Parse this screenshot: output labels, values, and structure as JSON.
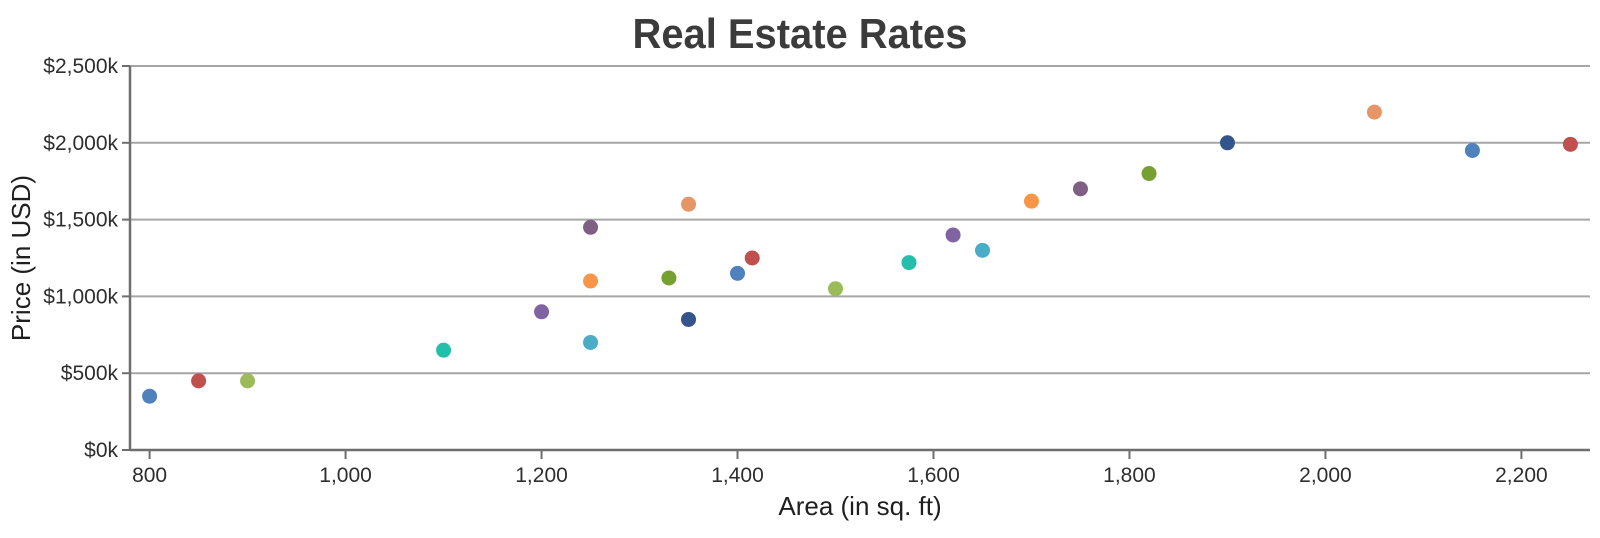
{
  "chart_data": {
    "type": "scatter",
    "title": "Real Estate Rates",
    "xlabel": "Area (in sq. ft)",
    "ylabel": "Price (in USD)",
    "y_unit": "thousands of USD (k)",
    "xlim": [
      780,
      2270
    ],
    "ylim": [
      0,
      2500
    ],
    "x_ticks": [
      800,
      1000,
      1200,
      1400,
      1600,
      1800,
      2000,
      2200
    ],
    "x_tick_labels": [
      "800",
      "1,000",
      "1,200",
      "1,400",
      "1,600",
      "1,800",
      "2,000",
      "2,200"
    ],
    "y_ticks": [
      0,
      500,
      1000,
      1500,
      2000,
      2500
    ],
    "y_tick_labels": [
      "$0k",
      "$500k",
      "$1,000k",
      "$1,500k",
      "$2,000k",
      "$2,500k"
    ],
    "grid": "horizontal-only",
    "legend": "none",
    "points": [
      {
        "x": 800,
        "y": 350,
        "color": "#4F81BC"
      },
      {
        "x": 850,
        "y": 450,
        "color": "#C0504E"
      },
      {
        "x": 900,
        "y": 450,
        "color": "#9BBB58"
      },
      {
        "x": 1100,
        "y": 650,
        "color": "#23BFAA"
      },
      {
        "x": 1200,
        "y": 900,
        "color": "#8064A1"
      },
      {
        "x": 1250,
        "y": 700,
        "color": "#4AACC5"
      },
      {
        "x": 1250,
        "y": 1100,
        "color": "#F79647"
      },
      {
        "x": 1250,
        "y": 1450,
        "color": "#7F6084"
      },
      {
        "x": 1330,
        "y": 1120,
        "color": "#77A033"
      },
      {
        "x": 1350,
        "y": 850,
        "color": "#33558B"
      },
      {
        "x": 1350,
        "y": 1600,
        "color": "#E59566"
      },
      {
        "x": 1400,
        "y": 1150,
        "color": "#4F81BC"
      },
      {
        "x": 1415,
        "y": 1250,
        "color": "#C0504E"
      },
      {
        "x": 1500,
        "y": 1050,
        "color": "#9BBB58"
      },
      {
        "x": 1575,
        "y": 1220,
        "color": "#23BFAA"
      },
      {
        "x": 1620,
        "y": 1400,
        "color": "#8064A1"
      },
      {
        "x": 1650,
        "y": 1300,
        "color": "#4AACC5"
      },
      {
        "x": 1700,
        "y": 1620,
        "color": "#F79647"
      },
      {
        "x": 1750,
        "y": 1700,
        "color": "#7F6084"
      },
      {
        "x": 1820,
        "y": 1800,
        "color": "#77A033"
      },
      {
        "x": 1900,
        "y": 2000,
        "color": "#33558B"
      },
      {
        "x": 2050,
        "y": 2200,
        "color": "#E59566"
      },
      {
        "x": 2150,
        "y": 1950,
        "color": "#4F81BC"
      },
      {
        "x": 2250,
        "y": 1990,
        "color": "#C0504E"
      }
    ]
  },
  "style": {
    "background": "#FFFFFF",
    "title_color": "#3B3B3B",
    "grid_color": "#A6A6A6",
    "axis_color": "#6E6E6E",
    "tick_color": "#6E6E6E",
    "text_color": "#2E2E2E",
    "palette": [
      "#4F81BC",
      "#C0504E",
      "#9BBB58",
      "#23BFAA",
      "#8064A1",
      "#4AACC5",
      "#F79647",
      "#7F6084",
      "#77A033",
      "#33558B",
      "#E59566"
    ]
  }
}
